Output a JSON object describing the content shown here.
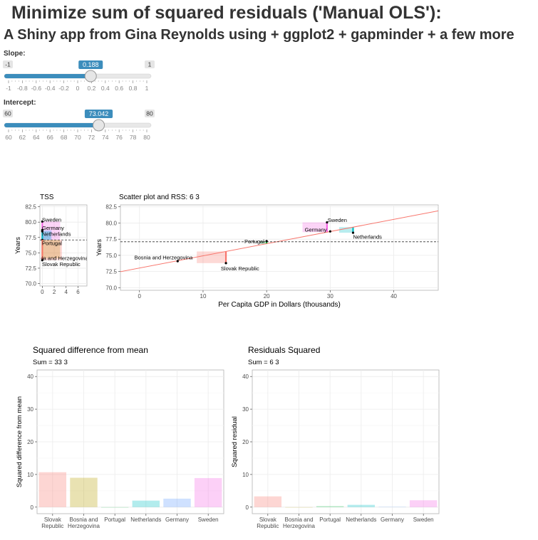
{
  "header": {
    "title": "Minimize sum of squared residuals ('Manual OLS'):",
    "subtitle": "A Shiny app from Gina Reynolds using + ggplot2 + gapminder + a few more"
  },
  "sliders": [
    {
      "label": "Slope:",
      "min": -1,
      "max": 1,
      "value": 0.188,
      "min_label": "-1",
      "max_label": "1",
      "value_label": "0.188",
      "ticks": [
        "-1",
        "-0.8",
        "-0.6",
        "-0.4",
        "-0.2",
        "0",
        "0.2",
        "0.4",
        "0.6",
        "0.8",
        "1"
      ]
    },
    {
      "label": "Intercept:",
      "min": 60,
      "max": 80,
      "value": 73.042,
      "min_label": "60",
      "max_label": "80",
      "value_label": "73.042",
      "ticks": [
        "60",
        "62",
        "64",
        "66",
        "68",
        "70",
        "72",
        "74",
        "76",
        "78",
        "80"
      ]
    }
  ],
  "colors": {
    "accent": "#3c8dbc",
    "track": "#e5e5e5",
    "Slovak Republic": "#f8766d",
    "Bosnia and Herzegovina": "#b79f00",
    "Portugal": "#00ba38",
    "Netherlands": "#00bfc4",
    "Germany": "#619cff",
    "Sweden": "#f564e3",
    "fit_line": "#f8766d"
  },
  "chart_data": [
    {
      "id": "tss",
      "type": "scatter",
      "title": "TSS",
      "xlabel": "",
      "ylabel": "Years",
      "xlim": [
        -0.4,
        7.5
      ],
      "ylim": [
        69.6,
        82.8
      ],
      "xticks": [
        "0",
        "2",
        "4",
        "6"
      ],
      "yticks": [
        "70.0",
        "72.5",
        "75.0",
        "77.5",
        "80.0",
        "82.5"
      ],
      "mean": 77.1,
      "points": [
        {
          "label": "Sweden",
          "y": 80.1,
          "side": 3.0
        },
        {
          "label": "Germany",
          "y": 78.7,
          "side": 1.6
        },
        {
          "label": "Netherlands",
          "y": 78.5,
          "side": 1.4
        },
        {
          "label": "Portugal",
          "y": 77.1,
          "side": 0.0
        },
        {
          "label": "Bosnia and Herzegovina",
          "y": 74.1,
          "side": 3.0
        },
        {
          "label": "Slovak Republic",
          "y": 73.8,
          "side": 3.3
        }
      ],
      "point_labels": [
        {
          "text": "Sweden",
          "y": 80.4
        },
        {
          "text": "Germany",
          "y": 79.1
        },
        {
          "text": "Netherlands",
          "y": 78.1
        },
        {
          "text": "Portugal",
          "y": 76.6
        },
        {
          "text": "ia and Herzegovina",
          "y": 74.2
        },
        {
          "text": "Slovak Republic",
          "y": 73.2
        }
      ]
    },
    {
      "id": "rss",
      "type": "scatter",
      "title": "Scatter plot and RSS: 6 3",
      "xlabel": "Per Capita GDP in Dollars (thousands)",
      "ylabel": "Years",
      "xlim": [
        -3,
        47
      ],
      "ylim": [
        69.6,
        82.8
      ],
      "xticks": [
        0,
        10,
        20,
        30,
        40
      ],
      "yticks": [
        "70.0",
        "72.5",
        "75.0",
        "77.5",
        "80.0",
        "82.5"
      ],
      "mean": 77.1,
      "intercept": 73.042,
      "slope": 0.188,
      "points": [
        {
          "label": "Bosnia and Herzegovina",
          "x": 6.0,
          "y": 74.1
        },
        {
          "label": "Slovak Republic",
          "x": 13.6,
          "y": 73.8
        },
        {
          "label": "Portugal",
          "x": 20.0,
          "y": 77.2
        },
        {
          "label": "Sweden",
          "x": 29.5,
          "y": 80.1
        },
        {
          "label": "Germany",
          "x": 30.0,
          "y": 78.7
        },
        {
          "label": "Netherlands",
          "x": 33.6,
          "y": 78.5
        }
      ],
      "point_labels": [
        {
          "text": "Bosnia and Herzegovina",
          "x": -0.8,
          "y": 74.7
        },
        {
          "text": "Slovak Republic",
          "x": 12.8,
          "y": 73.0
        },
        {
          "text": "Portugal",
          "x": 16.5,
          "y": 77.2
        },
        {
          "text": "Sweden",
          "x": 29.6,
          "y": 80.5
        },
        {
          "text": "Germany",
          "x": 26.0,
          "y": 79.0
        },
        {
          "text": "Netherlands",
          "x": 33.6,
          "y": 77.9
        }
      ]
    },
    {
      "id": "sq_diff",
      "type": "bar",
      "title": "Squared difference from mean",
      "subtitle": "Sum = 33 3",
      "xlabel": "",
      "ylabel": "Squared difference from mean",
      "ylim": [
        -2,
        42
      ],
      "yticks": [
        0,
        10,
        20,
        30,
        40
      ],
      "categories": [
        "Slovak\nRepublic",
        "Bosnia and\nHerzegovina",
        "Portugal",
        "Netherlands",
        "Germany",
        "Sweden"
      ],
      "keys": [
        "Slovak Republic",
        "Bosnia and Herzegovina",
        "Portugal",
        "Netherlands",
        "Germany",
        "Sweden"
      ],
      "values": [
        10.7,
        9.0,
        0.0,
        2.0,
        2.6,
        8.9
      ]
    },
    {
      "id": "resid_sq",
      "type": "bar",
      "title": "Residuals Squared",
      "subtitle": "Sum = 6 3",
      "xlabel": "",
      "ylabel": "Squared residual",
      "ylim": [
        -2,
        42
      ],
      "yticks": [
        0,
        10,
        20,
        30,
        40
      ],
      "categories": [
        "Slovak\nRepublic",
        "Bosnia and\nHerzegovina",
        "Portugal",
        "Netherlands",
        "Germany",
        "Sweden"
      ],
      "keys": [
        "Slovak Republic",
        "Bosnia and Herzegovina",
        "Portugal",
        "Netherlands",
        "Germany",
        "Sweden"
      ],
      "values": [
        3.3,
        0.0,
        0.3,
        0.7,
        0.1,
        2.1
      ]
    }
  ]
}
